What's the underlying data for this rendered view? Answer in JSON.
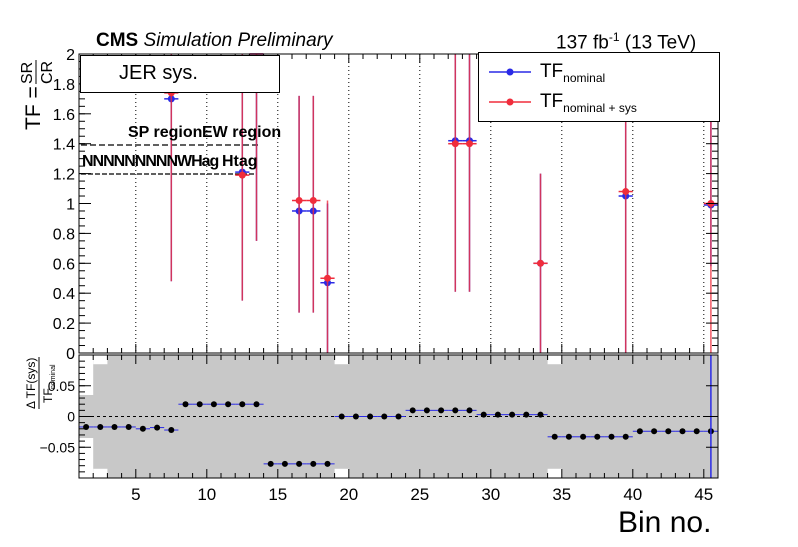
{
  "header": {
    "experiment": "CMS",
    "subtitle": "Simulation Preliminary",
    "lumi": "137 fb",
    "lumi_sup": "-1",
    "energy": "(13 TeV)"
  },
  "box_label": "JER sys.",
  "legend": [
    {
      "label": "TF",
      "sub": "nominal",
      "color": "#2a2ae6"
    },
    {
      "label": "TF",
      "sub": "nominal + sys",
      "color": "#f02d3c"
    }
  ],
  "region_labels": {
    "sp": "SP region",
    "ew": "EW region",
    "tags": "NNNNNNNNNWHag",
    "tags2": "Htag"
  },
  "x_title": "Bin no.",
  "top_y_title": "TF = SR/CR",
  "bottom_y_title": "ΔTF(sys) / TF nominal",
  "chart_data": [
    {
      "type": "scatter",
      "title": "",
      "xlabel": "Bin no.",
      "ylabel": "TF = SR/CR",
      "xlim": [
        1,
        46
      ],
      "ylim": [
        0,
        2
      ],
      "xticks": [
        5,
        10,
        15,
        20,
        25,
        30,
        35,
        40,
        45
      ],
      "yticks": [
        0,
        0.2,
        0.4,
        0.6,
        0.8,
        1,
        1.2,
        1.4,
        1.6,
        1.8,
        2
      ],
      "ytick_labels": [
        "0",
        "0.2",
        "0.4",
        "0.6",
        "0.8",
        "1",
        "1.2",
        "1.4",
        "1.6",
        "1.8",
        "2"
      ],
      "dotted_vlines": [
        5,
        10,
        15,
        20,
        25,
        30,
        35,
        40,
        45
      ],
      "series": [
        {
          "name": "TF nominal",
          "color": "#2a2ae6",
          "points": [
            {
              "x": 7.5,
              "y": 1.7,
              "ylo": 0.48,
              "yhi": 2.0
            },
            {
              "x": 12.5,
              "y": 1.21,
              "ylo": 0.35,
              "yhi": 2.0
            },
            {
              "x": 13.5,
              "y": 2.05,
              "ylo": 0.75,
              "yhi": 2.0
            },
            {
              "x": 16.5,
              "y": 0.95,
              "ylo": 0.27,
              "yhi": 1.72
            },
            {
              "x": 17.5,
              "y": 0.95,
              "ylo": 0.27,
              "yhi": 1.72
            },
            {
              "x": 18.5,
              "y": 0.47,
              "ylo": 0.0,
              "yhi": 1.0
            },
            {
              "x": 27.5,
              "y": 1.42,
              "ylo": 0.41,
              "yhi": 2.0
            },
            {
              "x": 28.5,
              "y": 1.42,
              "ylo": 0.41,
              "yhi": 2.0
            },
            {
              "x": 33.5,
              "y": 0.6,
              "ylo": 0.0,
              "yhi": 1.2
            },
            {
              "x": 39.5,
              "y": 1.05,
              "ylo": 0.0,
              "yhi": 2.0
            },
            {
              "x": 45.5,
              "y": 0.99,
              "ylo": 0.58,
              "yhi": 2.0
            }
          ]
        },
        {
          "name": "TF nominal + sys",
          "color": "#f02d3c",
          "points": [
            {
              "x": 7.5,
              "y": 1.74,
              "ylo": 0.48,
              "yhi": 2.0
            },
            {
              "x": 12.5,
              "y": 1.19,
              "ylo": 0.35,
              "yhi": 2.0
            },
            {
              "x": 13.5,
              "y": 2.05,
              "ylo": 0.75,
              "yhi": 2.0
            },
            {
              "x": 16.5,
              "y": 1.02,
              "ylo": 0.27,
              "yhi": 1.72
            },
            {
              "x": 17.5,
              "y": 1.02,
              "ylo": 0.27,
              "yhi": 1.72
            },
            {
              "x": 18.5,
              "y": 0.5,
              "ylo": 0.0,
              "yhi": 1.02
            },
            {
              "x": 27.5,
              "y": 1.4,
              "ylo": 0.41,
              "yhi": 2.0
            },
            {
              "x": 28.5,
              "y": 1.4,
              "ylo": 0.41,
              "yhi": 2.0
            },
            {
              "x": 33.5,
              "y": 0.6,
              "ylo": 0.0,
              "yhi": 1.2
            },
            {
              "x": 39.5,
              "y": 1.08,
              "ylo": 0.0,
              "yhi": 2.0
            },
            {
              "x": 45.5,
              "y": 1.0,
              "ylo": 0.0,
              "yhi": 2.0
            }
          ]
        }
      ]
    },
    {
      "type": "scatter",
      "title": "",
      "xlabel": "Bin no.",
      "ylabel": "ΔTF(sys)/TF nominal",
      "xlim": [
        1,
        46
      ],
      "ylim": [
        -0.1,
        0.1
      ],
      "yticks": [
        -0.05,
        0,
        0.05
      ],
      "ytick_labels": [
        "−0.05",
        "0",
        "0.05"
      ],
      "xticks": [
        5,
        10,
        15,
        20,
        25,
        30,
        35,
        40,
        45
      ],
      "xtick_labels": [
        "5",
        "10",
        "15",
        "20",
        "25",
        "30",
        "35",
        "40",
        "45"
      ],
      "band_color": "#c8c8c8",
      "band_gaps": [
        [
          1,
          2,
          0.035
        ],
        [
          2,
          3,
          0.085
        ],
        [
          19,
          20,
          0.085
        ],
        [
          34,
          35,
          0.085
        ]
      ],
      "series": [
        {
          "name": "ΔTF(sys)/TF nominal",
          "color": "#000000",
          "values": [
            -0.017,
            -0.017,
            -0.017,
            -0.017,
            -0.02,
            -0.018,
            -0.022,
            0.02,
            0.02,
            0.02,
            0.02,
            0.02,
            0.02,
            -0.077,
            -0.077,
            -0.077,
            -0.077,
            -0.077,
            0.0,
            0.0,
            0.0,
            0.0,
            0.0,
            0.01,
            0.01,
            0.01,
            0.01,
            0.01,
            0.003,
            0.003,
            0.003,
            0.003,
            0.003,
            -0.033,
            -0.033,
            -0.033,
            -0.033,
            -0.033,
            -0.033,
            -0.024,
            -0.024,
            -0.024,
            -0.024,
            -0.024,
            -0.024
          ],
          "bins_start": 1
        }
      ]
    }
  ]
}
